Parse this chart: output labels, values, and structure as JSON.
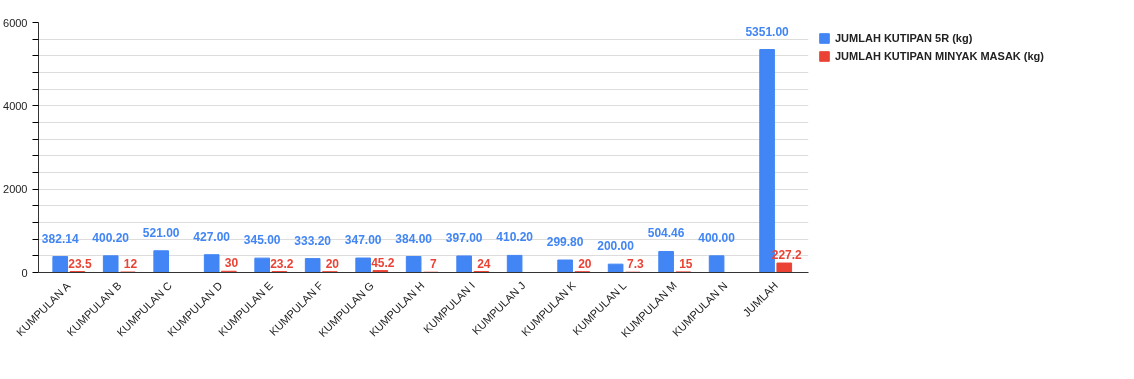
{
  "chart_data": {
    "type": "bar",
    "categories": [
      "KUMPULAN A",
      "KUMPULAN B",
      "KUMPULAN C",
      "KUMPULAN D",
      "KUMPULAN E",
      "KUMPULAN F",
      "KUMPULAN G",
      "KUMPULAN H",
      "KUMPULAN I",
      "KUMPULAN J",
      "KUMPULAN K",
      "KUMPULAN L",
      "KUMPULAN M",
      "KUMPULAN N",
      "JUMLAH"
    ],
    "series": [
      {
        "name": "JUMLAH KUTIPAN 5R (kg)",
        "color": "#4285f4",
        "values": [
          382.14,
          400.2,
          521,
          427,
          345,
          333.2,
          347,
          384,
          397,
          410.2,
          299.8,
          200,
          504.46,
          400,
          5351
        ],
        "value_labels": [
          "382.14",
          "400.20",
          "521.00",
          "427.00",
          "345.00",
          "333.20",
          "347.00",
          "384.00",
          "397.00",
          "410.20",
          "299.80",
          "200.00",
          "504.46",
          "400.00",
          "5351.00"
        ]
      },
      {
        "name": "JUMLAH KUTIPAN MINYAK MASAK (kg)",
        "color": "#ea4335",
        "values": [
          23.5,
          12,
          null,
          30,
          23.2,
          20,
          45.2,
          7,
          24,
          null,
          20,
          7.3,
          15,
          null,
          227.2
        ],
        "value_labels": [
          "23.5",
          "12",
          null,
          "30",
          "23.2",
          "20",
          "45.2",
          "7",
          "24",
          null,
          "20",
          "7.3",
          "15",
          null,
          "227.2"
        ]
      }
    ],
    "ylim": [
      0,
      6000
    ],
    "yticks": [
      0,
      {
        "value": 400,
        "label": null
      },
      {
        "value": 800,
        "label": null
      },
      {
        "value": 1200,
        "label": null
      },
      {
        "value": 1600,
        "label": null
      },
      2000,
      {
        "value": 2400,
        "label": null
      },
      {
        "value": 2800,
        "label": null
      },
      {
        "value": 3200,
        "label": null
      },
      {
        "value": 3600,
        "label": null
      },
      4000,
      {
        "value": 4400,
        "label": null
      },
      {
        "value": 4800,
        "label": null
      },
      {
        "value": 5200,
        "label": null
      },
      {
        "value": 5600,
        "label": null
      },
      6000
    ],
    "grid": "y",
    "legend": "top right"
  }
}
